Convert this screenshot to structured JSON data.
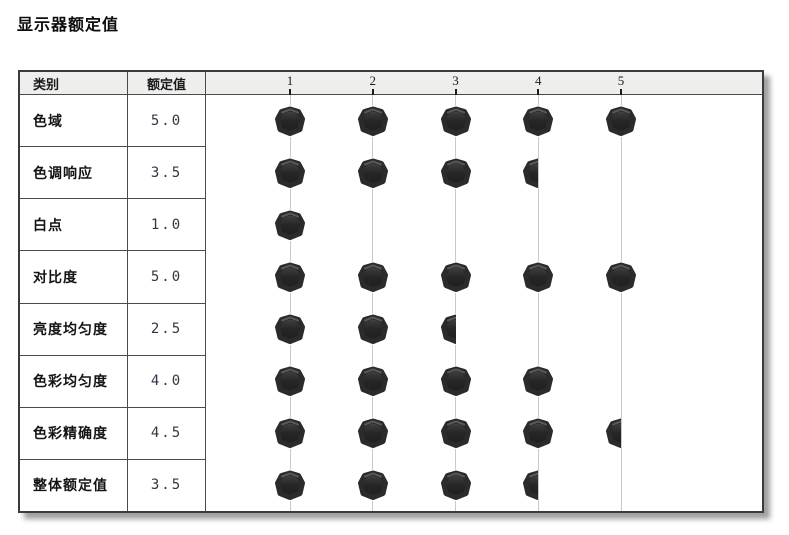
{
  "title": "显示器额定值",
  "table": {
    "header": {
      "category": "类别",
      "rating": "额定值"
    },
    "axis_ticks": [
      "1",
      "2",
      "3",
      "4",
      "5"
    ],
    "rows": [
      {
        "label": "色域",
        "value": "5.0"
      },
      {
        "label": "色调响应",
        "value": "3.5"
      },
      {
        "label": "白点",
        "value": "1.0"
      },
      {
        "label": "对比度",
        "value": "5.0"
      },
      {
        "label": "亮度均匀度",
        "value": "2.5"
      },
      {
        "label": "色彩均匀度",
        "value": "4.0"
      },
      {
        "label": "色彩精确度",
        "value": "4.5"
      },
      {
        "label": "整体额定值",
        "value": "3.5"
      }
    ]
  },
  "chart_data": {
    "type": "table",
    "title": "显示器额定值",
    "columns": [
      "类别",
      "额定值"
    ],
    "categories": [
      "色域",
      "色调响应",
      "白点",
      "对比度",
      "亮度均匀度",
      "色彩均匀度",
      "色彩精确度",
      "整体额定值"
    ],
    "values": [
      5.0,
      3.5,
      1.0,
      5.0,
      2.5,
      4.0,
      4.5,
      3.5
    ],
    "x_ticks": [
      1,
      2,
      3,
      4,
      5
    ],
    "xlim": [
      0,
      5
    ],
    "marker": "dark rounded-hexagon dot per unit; left-half dot for .5 fractions",
    "grid": "vertical light-gray gridlines at each integer tick",
    "legend": "none"
  },
  "colors": {
    "marker_fill": "#282828",
    "marker_highlight": "#636363",
    "gridline": "#c9c9c9",
    "header_bg": "#eeeeec",
    "table_border": "#3b3b3b",
    "value_text": "#2e3744"
  }
}
